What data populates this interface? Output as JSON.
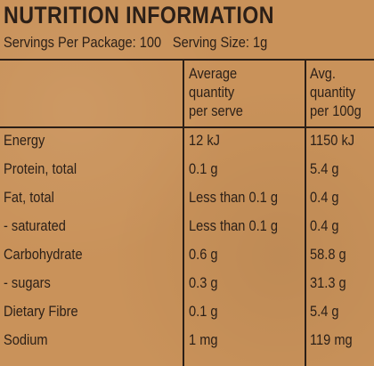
{
  "title": "NUTRITION INFORMATION",
  "servings_per_package": "Servings Per Package: 100",
  "serving_size": "Serving Size: 1g",
  "columns": {
    "per_serve": [
      "Average",
      "quantity",
      "per serve"
    ],
    "per_100g": [
      "Avg.",
      "quantity",
      "per 100g"
    ]
  },
  "rows": [
    {
      "name": "Energy",
      "per_serve": "12 kJ",
      "per_100g": "1150 kJ"
    },
    {
      "name": "Protein, total",
      "per_serve": "0.1 g",
      "per_100g": "5.4 g"
    },
    {
      "name": "Fat, total",
      "per_serve": "Less than 0.1 g",
      "per_100g": "0.4 g"
    },
    {
      "name": "- saturated",
      "per_serve": "Less than 0.1 g",
      "per_100g": "0.4 g"
    },
    {
      "name": "Carbohydrate",
      "per_serve": "0.6 g",
      "per_100g": "58.8 g"
    },
    {
      "name": "- sugars",
      "per_serve": "0.3 g",
      "per_100g": "31.3 g"
    },
    {
      "name": "Dietary Fibre",
      "per_serve": "0.1 g",
      "per_100g": "5.4 g"
    },
    {
      "name": "Sodium",
      "per_serve": "1 mg",
      "per_100g": "119 mg"
    }
  ]
}
